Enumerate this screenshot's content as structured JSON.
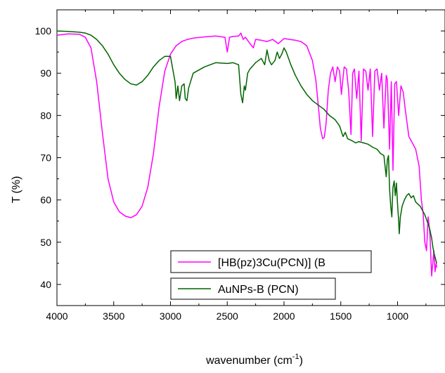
{
  "chart_data": {
    "type": "line",
    "title": "",
    "xlabel": "wavenumber (cm",
    "xlabel_sup": "-1",
    "xlabel_close": ")",
    "ylabel": "T (%)",
    "xlim": [
      4000,
      650
    ],
    "ylim": [
      35,
      105
    ],
    "x_reversed": true,
    "xticks": [
      4000,
      3500,
      3000,
      2500,
      2000,
      1500,
      1000
    ],
    "yticks": [
      40,
      50,
      60,
      70,
      80,
      90,
      100
    ],
    "grid": false,
    "legend_position": "lower-center",
    "series": [
      {
        "name": "[HB(pz)3Cu(PCN)] (B",
        "color": "#ff00ff",
        "x": [
          4000,
          3900,
          3800,
          3750,
          3700,
          3650,
          3600,
          3550,
          3500,
          3450,
          3400,
          3350,
          3300,
          3250,
          3200,
          3150,
          3100,
          3050,
          3000,
          2950,
          2900,
          2850,
          2800,
          2700,
          2600,
          2520,
          2500,
          2480,
          2450,
          2400,
          2380,
          2360,
          2340,
          2300,
          2270,
          2250,
          2200,
          2150,
          2100,
          2050,
          2000,
          1950,
          1900,
          1850,
          1800,
          1750,
          1720,
          1700,
          1680,
          1660,
          1645,
          1630,
          1610,
          1590,
          1570,
          1550,
          1530,
          1510,
          1495,
          1480,
          1470,
          1450,
          1430,
          1410,
          1395,
          1380,
          1360,
          1340,
          1320,
          1300,
          1280,
          1260,
          1240,
          1220,
          1200,
          1180,
          1160,
          1140,
          1120,
          1100,
          1090,
          1070,
          1055,
          1040,
          1025,
          1010,
          990,
          970,
          950,
          930,
          900,
          870,
          840,
          810,
          790,
          775,
          760,
          745,
          730,
          715,
          700,
          690,
          680,
          670,
          660,
          655
        ],
        "y": [
          99.0,
          99.3,
          99.2,
          98.5,
          96.0,
          88.0,
          76.0,
          65.0,
          59.5,
          57.2,
          56.2,
          55.8,
          56.5,
          58.5,
          63.0,
          71.0,
          82.0,
          90.5,
          94.5,
          96.5,
          97.5,
          98.0,
          98.3,
          98.6,
          98.8,
          98.5,
          95.0,
          98.5,
          98.7,
          98.8,
          99.5,
          98.0,
          98.5,
          97.0,
          96.0,
          98.0,
          97.8,
          97.5,
          98.0,
          97.0,
          98.2,
          98.0,
          97.8,
          97.5,
          96.5,
          93.0,
          88.5,
          83.0,
          77.0,
          74.5,
          74.8,
          78.0,
          86.0,
          90.0,
          91.5,
          88.0,
          91.5,
          90.5,
          85.0,
          89.0,
          91.5,
          91.0,
          85.5,
          75.5,
          90.0,
          91.0,
          84.0,
          90.5,
          74.0,
          91.0,
          90.5,
          86.0,
          91.0,
          75.0,
          90.5,
          91.0,
          86.0,
          90.0,
          77.0,
          89.5,
          88.5,
          72.0,
          88.0,
          67.0,
          87.5,
          88.0,
          80.0,
          87.0,
          85.5,
          81.0,
          75.0,
          73.5,
          72.0,
          68.0,
          60.0,
          57.0,
          50.0,
          48.0,
          56.0,
          52.0,
          42.0,
          45.0,
          48.0,
          43.0,
          45.0,
          44.0
        ]
      },
      {
        "name": "AuNPs-B (PCN)",
        "color": "#006400",
        "x": [
          4000,
          3900,
          3800,
          3750,
          3700,
          3650,
          3600,
          3550,
          3500,
          3450,
          3400,
          3350,
          3300,
          3250,
          3200,
          3150,
          3100,
          3050,
          3000,
          2980,
          2960,
          2950,
          2935,
          2920,
          2900,
          2880,
          2870,
          2855,
          2840,
          2800,
          2700,
          2600,
          2500,
          2450,
          2400,
          2380,
          2365,
          2350,
          2340,
          2320,
          2300,
          2250,
          2200,
          2170,
          2150,
          2130,
          2110,
          2080,
          2060,
          2040,
          2020,
          2000,
          1980,
          1960,
          1940,
          1900,
          1850,
          1800,
          1750,
          1700,
          1650,
          1600,
          1550,
          1510,
          1480,
          1460,
          1440,
          1400,
          1370,
          1340,
          1300,
          1260,
          1220,
          1180,
          1150,
          1120,
          1110,
          1100,
          1090,
          1080,
          1070,
          1060,
          1050,
          1045,
          1040,
          1030,
          1020,
          1010,
          1000,
          990,
          985,
          975,
          960,
          940,
          920,
          900,
          880,
          860,
          840,
          820,
          800,
          780,
          760,
          740,
          720,
          700,
          690,
          680,
          670,
          660,
          655
        ],
        "y": [
          100.0,
          99.9,
          99.7,
          99.5,
          99.0,
          98.0,
          96.5,
          94.5,
          92.0,
          90.0,
          88.5,
          87.5,
          87.2,
          88.0,
          89.5,
          91.5,
          93.0,
          94.0,
          94.0,
          91.0,
          88.0,
          84.0,
          87.0,
          83.5,
          87.0,
          87.5,
          84.0,
          83.5,
          86.5,
          90.0,
          91.5,
          92.5,
          92.3,
          92.5,
          92.0,
          85.0,
          83.0,
          87.0,
          86.0,
          90.0,
          91.0,
          92.5,
          93.5,
          92.0,
          95.5,
          93.0,
          92.0,
          93.0,
          95.0,
          93.5,
          94.5,
          96.0,
          95.0,
          93.5,
          92.0,
          89.5,
          87.0,
          85.0,
          83.5,
          82.5,
          81.5,
          80.0,
          79.0,
          77.5,
          75.0,
          76.0,
          74.5,
          74.0,
          73.5,
          73.8,
          73.5,
          73.2,
          72.5,
          72.0,
          71.0,
          70.5,
          68.0,
          65.5,
          69.5,
          70.5,
          62.5,
          58.5,
          56.0,
          60.0,
          63.0,
          64.5,
          61.0,
          64.0,
          59.0,
          55.0,
          52.0,
          56.0,
          58.5,
          60.0,
          61.0,
          61.5,
          60.5,
          61.0,
          59.5,
          59.0,
          58.5,
          57.5,
          56.5,
          55.0,
          53.5,
          51.0,
          49.0,
          47.5,
          46.5,
          45.5,
          45.0
        ]
      }
    ]
  }
}
